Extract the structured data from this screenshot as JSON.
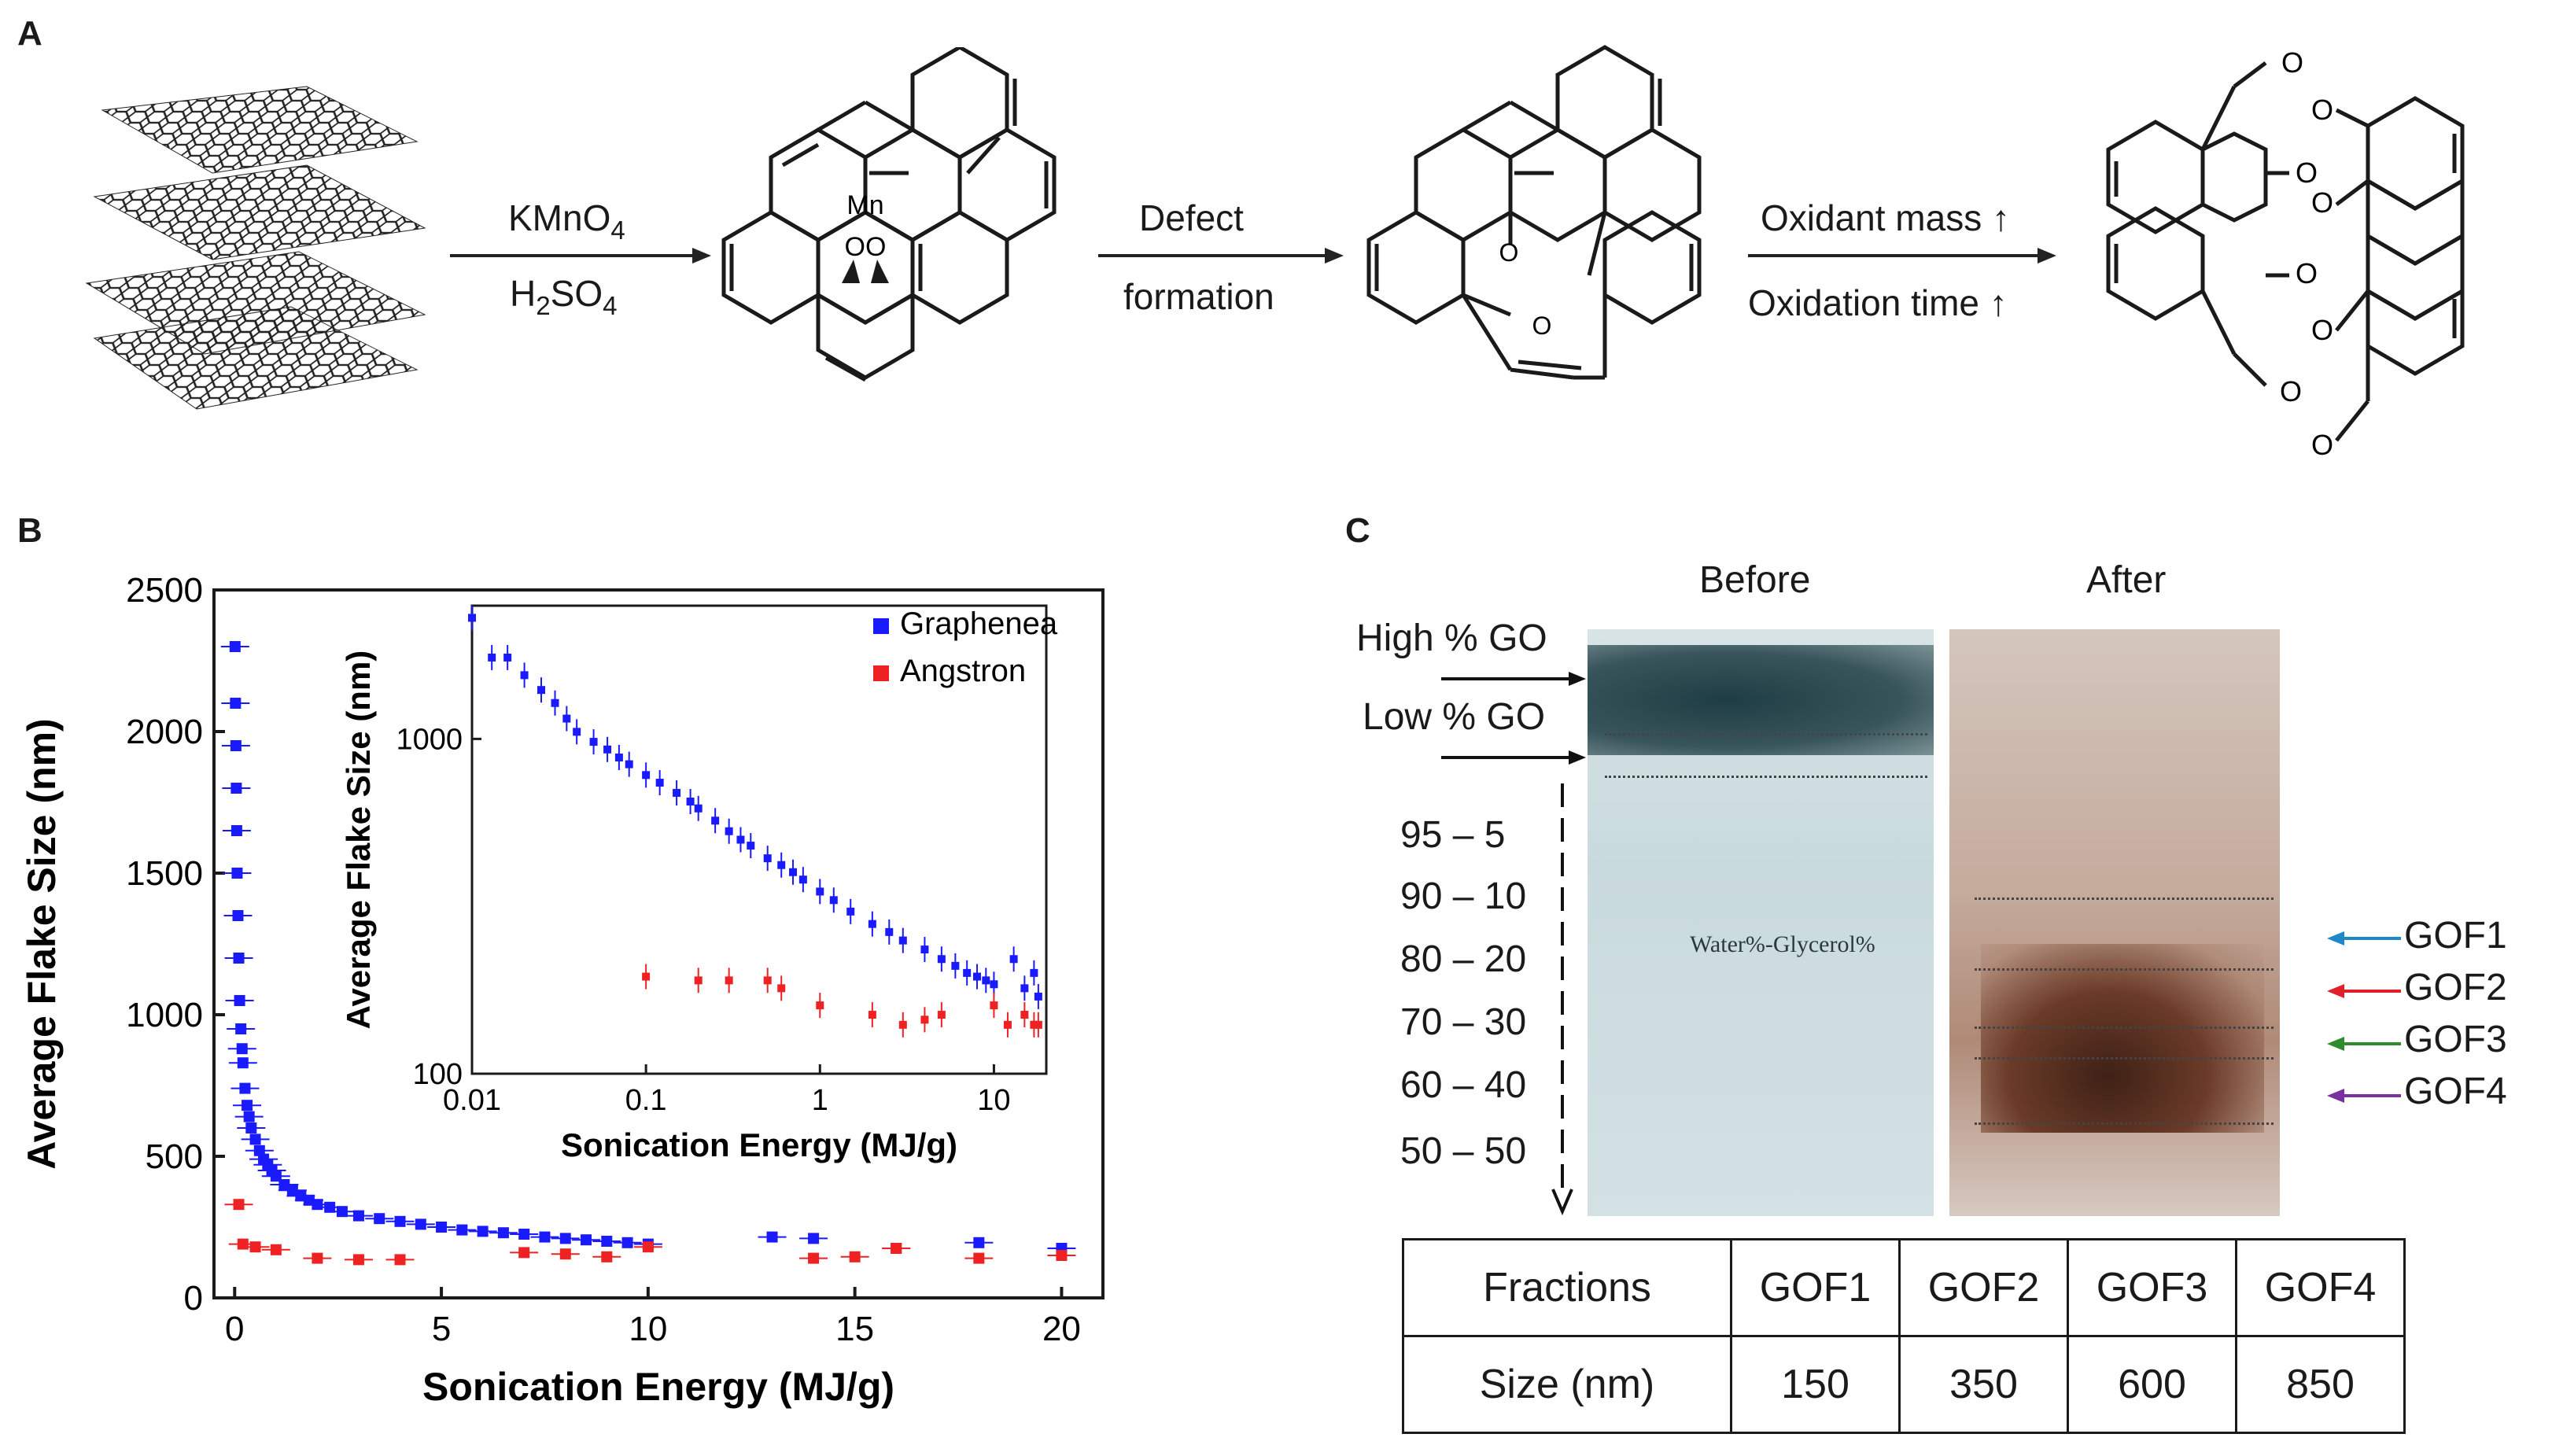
{
  "panel_a": {
    "letter": "A",
    "step1": {
      "reagent_top": "KMnO",
      "reagent_top_sub": "4",
      "reagent_bottom_h": "H",
      "reagent_bottom_sub1": "2",
      "reagent_bottom_so": "SO",
      "reagent_bottom_sub2": "4"
    },
    "step2": {
      "line1": "Defect",
      "line2": "formation"
    },
    "step3": {
      "line1": "Oxidant mass",
      "line2": "Oxidation time"
    },
    "mn_label": "Mn",
    "oo_label": "OO",
    "o_label": "O"
  },
  "panel_b": {
    "letter": "B",
    "chart_data": {
      "type": "scatter",
      "xlabel": "Sonication Energy (MJ/g)",
      "ylabel": "Average Flake Size (nm)",
      "xlim": [
        -0.5,
        21
      ],
      "ylim": [
        0,
        2500
      ],
      "xticks": [
        "0",
        "5",
        "10",
        "15",
        "20"
      ],
      "yticks": [
        "0",
        "500",
        "1000",
        "1500",
        "2000",
        "2500"
      ],
      "legend": [
        "Graphenea",
        "Angstron"
      ],
      "legend_position": "top-right",
      "series": [
        {
          "name": "Graphenea",
          "color": "#1a1aff",
          "x": [
            0.01,
            0.02,
            0.03,
            0.04,
            0.05,
            0.06,
            0.08,
            0.1,
            0.12,
            0.15,
            0.18,
            0.2,
            0.25,
            0.3,
            0.35,
            0.4,
            0.5,
            0.6,
            0.7,
            0.8,
            0.9,
            1.0,
            1.2,
            1.4,
            1.6,
            1.8,
            2.0,
            2.3,
            2.6,
            3.0,
            3.5,
            4.0,
            4.5,
            5.0,
            5.5,
            6.0,
            6.5,
            7.0,
            7.5,
            8.0,
            8.5,
            9.0,
            9.5,
            10.0,
            13.0,
            14.0,
            16.0,
            18.0,
            20.0
          ],
          "y": [
            2300,
            2100,
            1950,
            1800,
            1650,
            1500,
            1350,
            1200,
            1050,
            950,
            880,
            830,
            740,
            680,
            640,
            600,
            560,
            520,
            490,
            470,
            450,
            430,
            400,
            380,
            360,
            345,
            330,
            320,
            305,
            290,
            280,
            270,
            260,
            250,
            240,
            235,
            230,
            225,
            215,
            210,
            205,
            200,
            195,
            190,
            215,
            210,
            175,
            195,
            175
          ]
        },
        {
          "name": "Angstron",
          "color": "#ee2222",
          "x": [
            0.1,
            0.2,
            0.5,
            1.0,
            2.0,
            3.0,
            4.0,
            7.0,
            8.0,
            9.0,
            10.0,
            14.0,
            15.0,
            16.0,
            18.0,
            20.0
          ],
          "y": [
            330,
            190,
            180,
            170,
            140,
            135,
            135,
            160,
            155,
            145,
            180,
            140,
            145,
            175,
            140,
            150
          ]
        }
      ]
    },
    "inset_chart_data": {
      "type": "scatter",
      "xlabel": "Sonication Energy (MJ/g)",
      "ylabel": "Average Flake Size (nm)",
      "x_scale": "log",
      "y_scale": "log",
      "xlim": [
        0.01,
        20
      ],
      "ylim": [
        100,
        2500
      ],
      "xticks": [
        "0.01",
        "0.1",
        "1",
        "10"
      ],
      "yticks": [
        "100",
        "1000"
      ],
      "series": [
        {
          "name": "Graphenea",
          "color": "#1a1aff",
          "x": [
            0.01,
            0.013,
            0.016,
            0.02,
            0.025,
            0.03,
            0.035,
            0.04,
            0.05,
            0.06,
            0.07,
            0.08,
            0.1,
            0.12,
            0.15,
            0.18,
            0.2,
            0.25,
            0.3,
            0.35,
            0.4,
            0.5,
            0.6,
            0.7,
            0.8,
            1.0,
            1.2,
            1.5,
            2.0,
            2.5,
            3.0,
            4.0,
            5.0,
            6.0,
            7.0,
            8.0,
            9.0,
            10.0,
            13.0,
            15.0,
            17.0,
            18.0
          ],
          "y": [
            2300,
            1750,
            1750,
            1550,
            1400,
            1280,
            1150,
            1050,
            980,
            930,
            880,
            840,
            780,
            740,
            690,
            650,
            620,
            570,
            530,
            500,
            480,
            440,
            420,
            400,
            380,
            350,
            330,
            305,
            280,
            265,
            250,
            235,
            220,
            210,
            200,
            195,
            190,
            185,
            220,
            180,
            200,
            170
          ]
        },
        {
          "name": "Angstron",
          "color": "#ee2222",
          "x": [
            0.1,
            0.2,
            0.3,
            0.5,
            0.6,
            1.0,
            2.0,
            3.0,
            4.0,
            5.0,
            10.0,
            12.0,
            15.0,
            17.0,
            18.0
          ],
          "y": [
            195,
            190,
            190,
            190,
            180,
            160,
            150,
            140,
            145,
            150,
            160,
            140,
            150,
            140,
            140
          ]
        }
      ]
    }
  },
  "panel_c": {
    "letter": "C",
    "before_label": "Before",
    "after_label": "After",
    "high_go": "High % GO",
    "low_go": "Low % GO",
    "ratios": [
      "95 – 5",
      "90 – 10",
      "80 – 20",
      "70 – 30",
      "60 – 40",
      "50 – 50"
    ],
    "tube_text": "Water%-Glycerol%",
    "gof_labels": [
      {
        "label": "GOF1",
        "color": "#1e88c8"
      },
      {
        "label": "GOF2",
        "color": "#e0202a"
      },
      {
        "label": "GOF3",
        "color": "#2e8b2e"
      },
      {
        "label": "GOF4",
        "color": "#7b2fa0"
      }
    ],
    "table": {
      "row1": [
        "Fractions",
        "GOF1",
        "GOF2",
        "GOF3",
        "GOF4"
      ],
      "row2": [
        "Size (nm)",
        "150",
        "350",
        "600",
        "850"
      ]
    }
  }
}
